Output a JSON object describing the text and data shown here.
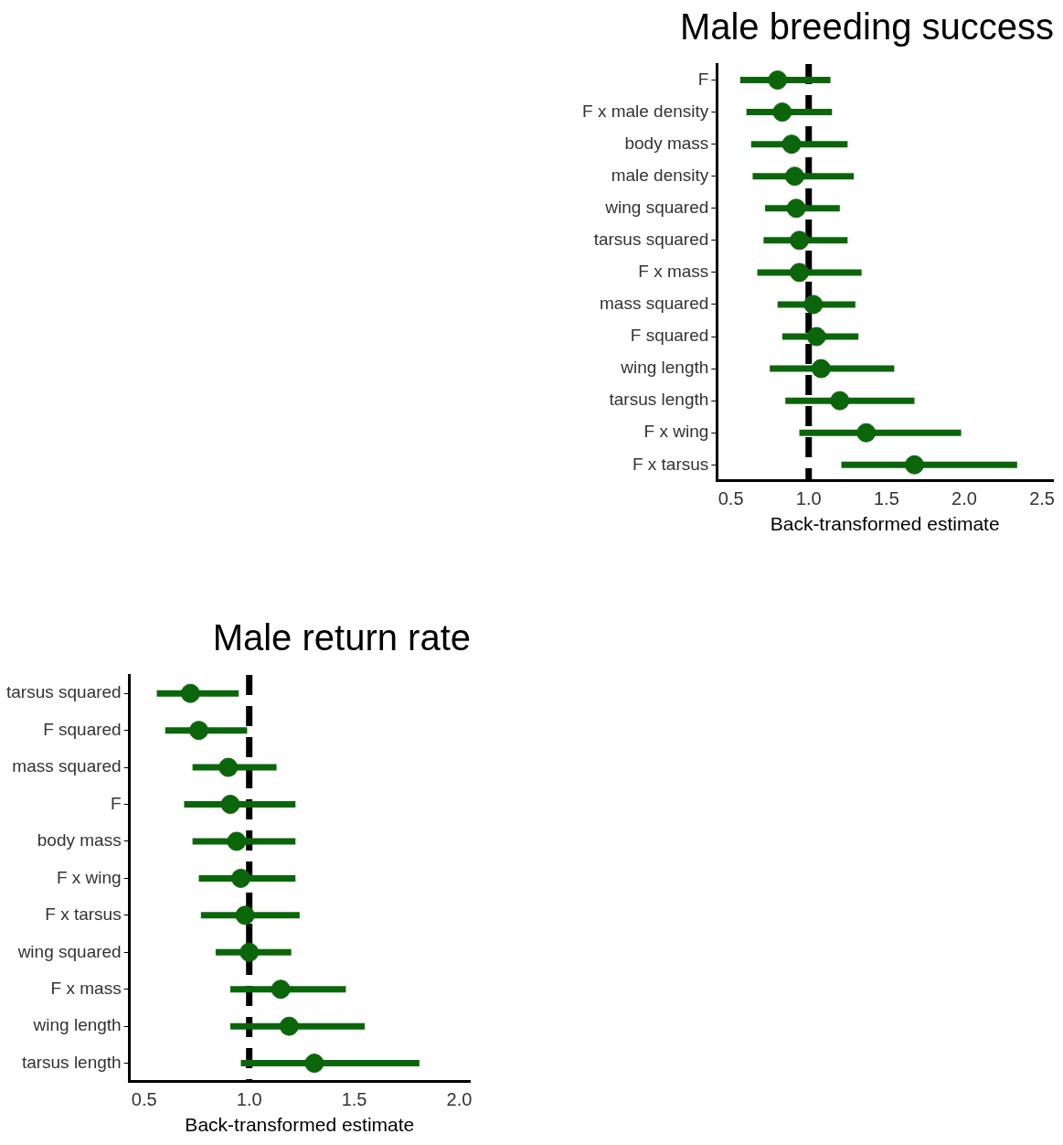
{
  "chart_data": [
    {
      "type": "scatter",
      "title": "Male breeding success",
      "xlabel": "Back-transformed estimate",
      "orientation": "horizontal",
      "categories": [
        "F",
        "F x male density",
        "body mass",
        "male density",
        "wing squared",
        "tarsus squared",
        "F x mass",
        "mass squared",
        "F squared",
        "wing length",
        "tarsus length",
        "F x wing",
        "F x tarsus"
      ],
      "values": [
        0.8,
        0.83,
        0.89,
        0.91,
        0.92,
        0.94,
        0.94,
        1.03,
        1.05,
        1.08,
        1.2,
        1.37,
        1.68
      ],
      "errors": [
        [
          0.56,
          1.14
        ],
        [
          0.6,
          1.15
        ],
        [
          0.63,
          1.25
        ],
        [
          0.64,
          1.29
        ],
        [
          0.72,
          1.2
        ],
        [
          0.71,
          1.25
        ],
        [
          0.67,
          1.34
        ],
        [
          0.8,
          1.3
        ],
        [
          0.83,
          1.32
        ],
        [
          0.75,
          1.55
        ],
        [
          0.85,
          1.68
        ],
        [
          0.94,
          1.98
        ],
        [
          1.21,
          2.34
        ]
      ],
      "color": "#0b660b",
      "marker": "circle",
      "xlim": [
        0.41,
        2.57
      ],
      "xticks": [
        {
          "value": 0.5,
          "label": "0.5"
        },
        {
          "value": 1,
          "label": "1.0"
        },
        {
          "value": 1.5,
          "label": "1.5"
        },
        {
          "value": 2,
          "label": "2.0"
        },
        {
          "value": 2.5,
          "label": "2.5"
        }
      ],
      "ref_lines": [
        {
          "axis": "x",
          "value": 1,
          "color": "#000000",
          "line_style": "dashed"
        }
      ],
      "grid": false,
      "legend": false
    },
    {
      "type": "scatter",
      "title": "Male return rate",
      "xlabel": "Back-transformed estimate",
      "orientation": "horizontal",
      "categories": [
        "tarsus squared",
        "F squared",
        "mass squared",
        "F",
        "body mass",
        "F x wing",
        "F x tarsus",
        "wing squared",
        "F x mass",
        "wing length",
        "tarsus length"
      ],
      "values": [
        0.72,
        0.76,
        0.9,
        0.91,
        0.94,
        0.96,
        0.98,
        1.0,
        1.15,
        1.19,
        1.31
      ],
      "errors": [
        [
          0.56,
          0.95
        ],
        [
          0.6,
          0.99
        ],
        [
          0.73,
          1.13
        ],
        [
          0.69,
          1.22
        ],
        [
          0.73,
          1.22
        ],
        [
          0.76,
          1.22
        ],
        [
          0.77,
          1.24
        ],
        [
          0.84,
          1.2
        ],
        [
          0.91,
          1.46
        ],
        [
          0.91,
          1.55
        ],
        [
          0.96,
          1.81
        ]
      ],
      "color": "#0b660b",
      "marker": "circle",
      "xlim": [
        0.43,
        2.05
      ],
      "xticks": [
        {
          "value": 0.5,
          "label": "0.5"
        },
        {
          "value": 1,
          "label": "1.0"
        },
        {
          "value": 1.5,
          "label": "1.5"
        },
        {
          "value": 2,
          "label": "2.0"
        }
      ],
      "ref_lines": [
        {
          "axis": "x",
          "value": 1,
          "color": "#000000",
          "line_style": "dashed"
        }
      ],
      "grid": false,
      "legend": false
    }
  ]
}
